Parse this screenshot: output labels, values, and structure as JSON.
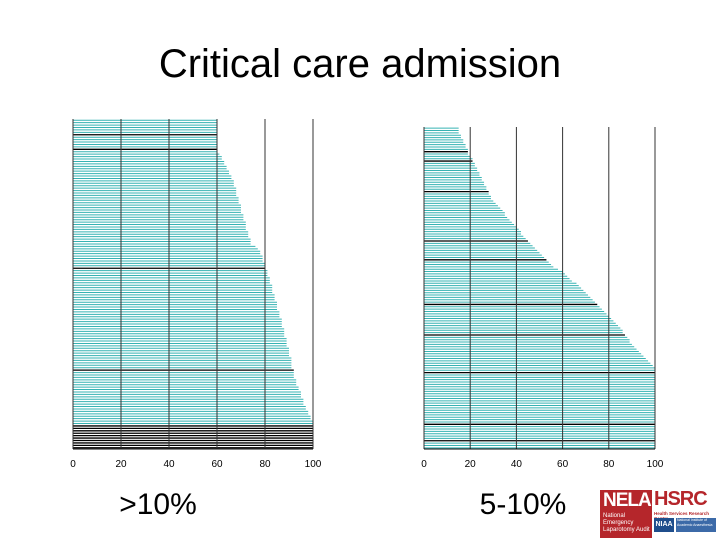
{
  "title": "Critical care admission",
  "panels": [
    {
      "label": ">10%",
      "ticks": [
        "0",
        "20",
        "40",
        "60",
        "80",
        "100"
      ]
    },
    {
      "label": "5-10%",
      "ticks": [
        "0",
        "20",
        "40",
        "60",
        "80",
        "100"
      ]
    }
  ],
  "logos": {
    "nela_big": "NELA",
    "nela_small": "National Emergency Laparotomy Audit",
    "hsrc_big": "HSRC",
    "hsrc_small": "Health Services Research Centre",
    "niaa": "NIAA",
    "niaa_small": "National Institute of Academic Anaesthesia"
  },
  "colors": {
    "bar": "#36b3b3",
    "highlight": "#000000",
    "grid": "#333333"
  },
  "chart_data": [
    {
      "type": "bar",
      "orientation": "horizontal",
      "label": ">10%",
      "xlim": [
        0,
        100
      ],
      "grid": true,
      "values": [
        60,
        60,
        60,
        60,
        60,
        60,
        60,
        60,
        60,
        60,
        60,
        60,
        60,
        60,
        61,
        62,
        62,
        63,
        63,
        64,
        64,
        65,
        65,
        66,
        66,
        67,
        67,
        67,
        68,
        68,
        68,
        68,
        69,
        69,
        69,
        70,
        70,
        70,
        70,
        71,
        71,
        71,
        72,
        72,
        72,
        72,
        73,
        73,
        73,
        74,
        74,
        74,
        76,
        77,
        78,
        78,
        79,
        79,
        79,
        80,
        80,
        80,
        81,
        81,
        81,
        82,
        82,
        82,
        83,
        83,
        83,
        83,
        84,
        84,
        84,
        85,
        85,
        85,
        85,
        86,
        86,
        86,
        87,
        87,
        87,
        87,
        88,
        88,
        88,
        88,
        89,
        89,
        89,
        89,
        90,
        90,
        90,
        90,
        91,
        91,
        91,
        91,
        91,
        92,
        92,
        92,
        92,
        93,
        93,
        93,
        94,
        94,
        95,
        95,
        95,
        96,
        96,
        96,
        97,
        97,
        98,
        98,
        99,
        99,
        100,
        100,
        100,
        100,
        100,
        100,
        100,
        100,
        100,
        100,
        100,
        100
      ],
      "highlighted": [
        6,
        12,
        61,
        103,
        126,
        127,
        128,
        129,
        130,
        131,
        132,
        133,
        134,
        135
      ]
    },
    {
      "type": "bar",
      "orientation": "horizontal",
      "label": "5-10%",
      "xlim": [
        0,
        100
      ],
      "grid": true,
      "values": [
        15,
        15,
        15,
        16,
        16,
        17,
        17,
        18,
        18,
        19,
        19,
        19,
        20,
        21,
        21,
        22,
        22,
        23,
        23,
        24,
        24,
        25,
        25,
        26,
        26,
        27,
        27,
        28,
        28,
        29,
        29,
        30,
        31,
        32,
        33,
        34,
        35,
        35,
        36,
        37,
        38,
        39,
        40,
        41,
        42,
        42,
        43,
        44,
        45,
        46,
        47,
        48,
        49,
        50,
        51,
        52,
        53,
        54,
        55,
        56,
        58,
        60,
        61,
        62,
        63,
        64,
        66,
        67,
        68,
        69,
        70,
        71,
        72,
        73,
        74,
        75,
        76,
        77,
        78,
        79,
        80,
        81,
        82,
        83,
        84,
        85,
        86,
        86,
        87,
        88,
        89,
        89,
        90,
        91,
        92,
        93,
        94,
        95,
        96,
        97,
        98,
        99,
        100,
        100,
        100,
        100,
        100,
        100,
        100,
        100,
        100,
        100,
        100,
        100,
        100,
        100,
        100,
        100,
        100,
        100,
        100,
        100,
        100,
        100,
        100,
        100,
        100,
        100,
        100,
        100,
        100,
        100,
        100,
        100,
        100,
        100,
        100
      ],
      "highlighted": [
        10,
        14,
        27,
        48,
        56,
        75,
        88,
        104,
        126,
        133
      ]
    }
  ]
}
